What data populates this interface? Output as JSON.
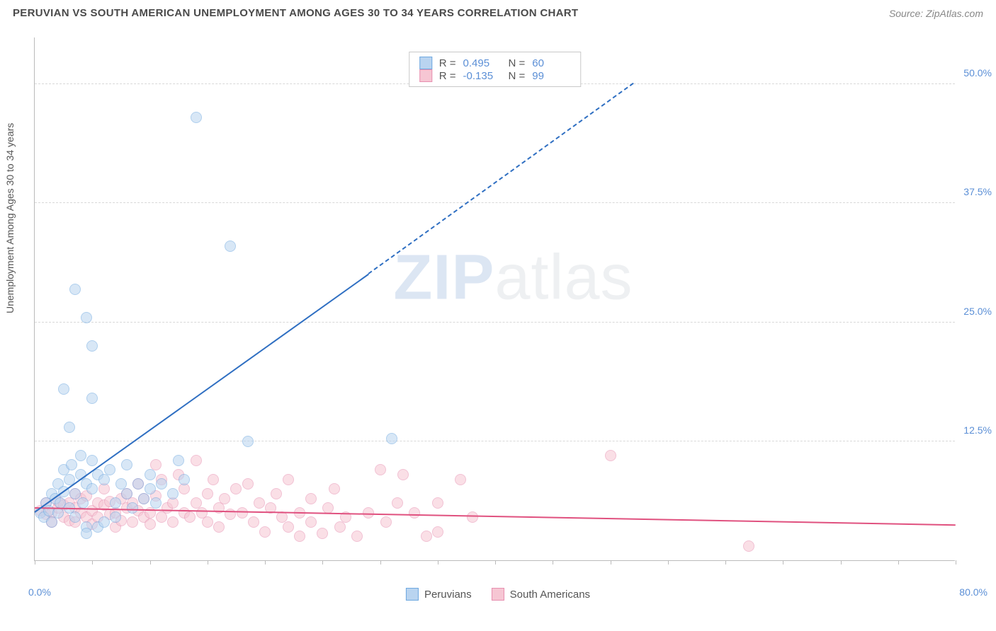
{
  "header": {
    "title": "PERUVIAN VS SOUTH AMERICAN UNEMPLOYMENT AMONG AGES 30 TO 34 YEARS CORRELATION CHART",
    "source": "Source: ZipAtlas.com"
  },
  "chart": {
    "type": "scatter",
    "ylabel": "Unemployment Among Ages 30 to 34 years",
    "x_min": 0,
    "x_max": 80,
    "y_min": 0,
    "y_max": 55,
    "x_min_label": "0.0%",
    "x_max_label": "80.0%",
    "y_ticks": [
      12.5,
      25.0,
      37.5,
      50.0
    ],
    "y_tick_labels": [
      "12.5%",
      "25.0%",
      "37.5%",
      "50.0%"
    ],
    "x_tick_marks": [
      0,
      5,
      10,
      15,
      20,
      25,
      30,
      35,
      40,
      45,
      50,
      55,
      60,
      65,
      70,
      75,
      80
    ],
    "background_color": "#ffffff",
    "grid_color": "#d8d8d8",
    "axis_color": "#bbbbbb",
    "tick_label_color": "#5b8fd6",
    "marker_radius": 8,
    "marker_opacity": 0.55,
    "series": {
      "peruvians": {
        "label": "Peruvians",
        "color_fill": "#b9d4f0",
        "color_stroke": "#6ea8e0",
        "trend_color": "#2f6fc2",
        "R": 0.495,
        "N": 60,
        "R_text": "0.495",
        "N_text": "60",
        "trend": {
          "x1": 0,
          "y1": 5,
          "x2": 29,
          "y2": 30,
          "x2_dash": 52,
          "y2_dash": 50
        },
        "points": [
          [
            0.5,
            5.0
          ],
          [
            0.8,
            4.5
          ],
          [
            1.0,
            6.0
          ],
          [
            1.2,
            5.2
          ],
          [
            1.5,
            7.0
          ],
          [
            1.5,
            4.0
          ],
          [
            1.8,
            6.5
          ],
          [
            2.0,
            5.0
          ],
          [
            2.0,
            8.0
          ],
          [
            2.2,
            6.0
          ],
          [
            2.5,
            9.5
          ],
          [
            2.5,
            7.2
          ],
          [
            3.0,
            8.5
          ],
          [
            3.0,
            5.5
          ],
          [
            3.2,
            10.0
          ],
          [
            3.5,
            7.0
          ],
          [
            3.5,
            4.5
          ],
          [
            4.0,
            9.0
          ],
          [
            4.0,
            11.0
          ],
          [
            4.2,
            6.0
          ],
          [
            4.5,
            8.0
          ],
          [
            4.5,
            3.5
          ],
          [
            4.5,
            2.8
          ],
          [
            5.0,
            10.5
          ],
          [
            5.0,
            7.5
          ],
          [
            5.5,
            9.0
          ],
          [
            5.5,
            3.5
          ],
          [
            6.0,
            8.5
          ],
          [
            6.0,
            4.0
          ],
          [
            6.5,
            9.5
          ],
          [
            7.0,
            6.0
          ],
          [
            7.0,
            4.5
          ],
          [
            7.5,
            8.0
          ],
          [
            8.0,
            7.0
          ],
          [
            8.0,
            10.0
          ],
          [
            8.5,
            5.5
          ],
          [
            9.0,
            8.0
          ],
          [
            9.5,
            6.5
          ],
          [
            10.0,
            7.5
          ],
          [
            10.0,
            9.0
          ],
          [
            10.5,
            6.0
          ],
          [
            11.0,
            8.0
          ],
          [
            12.0,
            7.0
          ],
          [
            12.5,
            10.5
          ],
          [
            13.0,
            8.5
          ],
          [
            2.5,
            18.0
          ],
          [
            3.0,
            14.0
          ],
          [
            3.5,
            28.5
          ],
          [
            4.5,
            25.5
          ],
          [
            5.0,
            22.5
          ],
          [
            5.0,
            17.0
          ],
          [
            14.0,
            46.5
          ],
          [
            17.0,
            33.0
          ],
          [
            18.5,
            12.5
          ],
          [
            31.0,
            12.8
          ]
        ]
      },
      "south_americans": {
        "label": "South Americans",
        "color_fill": "#f6c6d3",
        "color_stroke": "#e78fb0",
        "trend_color": "#e0517f",
        "R": -0.135,
        "N": 99,
        "R_text": "-0.135",
        "N_text": "99",
        "trend": {
          "x1": 0,
          "y1": 5.4,
          "x2": 80,
          "y2": 3.6
        },
        "points": [
          [
            0.5,
            5.2
          ],
          [
            1.0,
            4.8
          ],
          [
            1.0,
            6.0
          ],
          [
            1.5,
            5.0
          ],
          [
            1.5,
            4.0
          ],
          [
            2.0,
            5.5
          ],
          [
            2.0,
            6.2
          ],
          [
            2.5,
            4.5
          ],
          [
            2.5,
            5.8
          ],
          [
            3.0,
            6.0
          ],
          [
            3.0,
            4.2
          ],
          [
            3.5,
            5.5
          ],
          [
            3.5,
            7.0
          ],
          [
            3.5,
            4.0
          ],
          [
            4.0,
            6.5
          ],
          [
            4.0,
            5.0
          ],
          [
            4.5,
            4.5
          ],
          [
            4.5,
            6.8
          ],
          [
            5.0,
            5.2
          ],
          [
            5.0,
            3.8
          ],
          [
            5.5,
            6.0
          ],
          [
            5.5,
            4.5
          ],
          [
            6.0,
            5.8
          ],
          [
            6.0,
            7.5
          ],
          [
            6.5,
            4.8
          ],
          [
            6.5,
            6.2
          ],
          [
            7.0,
            5.0
          ],
          [
            7.0,
            3.5
          ],
          [
            7.5,
            6.5
          ],
          [
            7.5,
            4.2
          ],
          [
            8.0,
            5.5
          ],
          [
            8.0,
            7.0
          ],
          [
            8.5,
            4.0
          ],
          [
            8.5,
            6.0
          ],
          [
            9.0,
            5.2
          ],
          [
            9.0,
            8.0
          ],
          [
            9.5,
            4.5
          ],
          [
            9.5,
            6.5
          ],
          [
            10.0,
            5.0
          ],
          [
            10.0,
            3.8
          ],
          [
            10.5,
            6.8
          ],
          [
            10.5,
            10.0
          ],
          [
            11.0,
            4.5
          ],
          [
            11.0,
            8.5
          ],
          [
            11.5,
            5.5
          ],
          [
            12.0,
            6.0
          ],
          [
            12.0,
            4.0
          ],
          [
            12.5,
            9.0
          ],
          [
            13.0,
            5.0
          ],
          [
            13.0,
            7.5
          ],
          [
            13.5,
            4.5
          ],
          [
            14.0,
            6.0
          ],
          [
            14.0,
            10.5
          ],
          [
            14.5,
            5.0
          ],
          [
            15.0,
            7.0
          ],
          [
            15.0,
            4.0
          ],
          [
            15.5,
            8.5
          ],
          [
            16.0,
            5.5
          ],
          [
            16.0,
            3.5
          ],
          [
            16.5,
            6.5
          ],
          [
            17.0,
            4.8
          ],
          [
            17.5,
            7.5
          ],
          [
            18.0,
            5.0
          ],
          [
            18.5,
            8.0
          ],
          [
            19.0,
            4.0
          ],
          [
            19.5,
            6.0
          ],
          [
            20.0,
            3.0
          ],
          [
            20.5,
            5.5
          ],
          [
            21.0,
            7.0
          ],
          [
            21.5,
            4.5
          ],
          [
            22.0,
            3.5
          ],
          [
            22.0,
            8.5
          ],
          [
            23.0,
            5.0
          ],
          [
            23.0,
            2.5
          ],
          [
            24.0,
            6.5
          ],
          [
            24.0,
            4.0
          ],
          [
            25.0,
            2.8
          ],
          [
            25.5,
            5.5
          ],
          [
            26.0,
            7.5
          ],
          [
            26.5,
            3.5
          ],
          [
            27.0,
            4.5
          ],
          [
            28.0,
            2.5
          ],
          [
            29.0,
            5.0
          ],
          [
            30.0,
            9.5
          ],
          [
            30.5,
            4.0
          ],
          [
            31.5,
            6.0
          ],
          [
            32.0,
            9.0
          ],
          [
            33.0,
            5.0
          ],
          [
            34.0,
            2.5
          ],
          [
            35.0,
            6.0
          ],
          [
            35.0,
            3.0
          ],
          [
            37.0,
            8.5
          ],
          [
            38.0,
            4.5
          ],
          [
            50.0,
            11.0
          ],
          [
            62.0,
            1.5
          ]
        ]
      }
    },
    "watermark": "ZIPatlas"
  },
  "legend_bottom": {
    "a": "Peruvians",
    "b": "South Americans"
  }
}
